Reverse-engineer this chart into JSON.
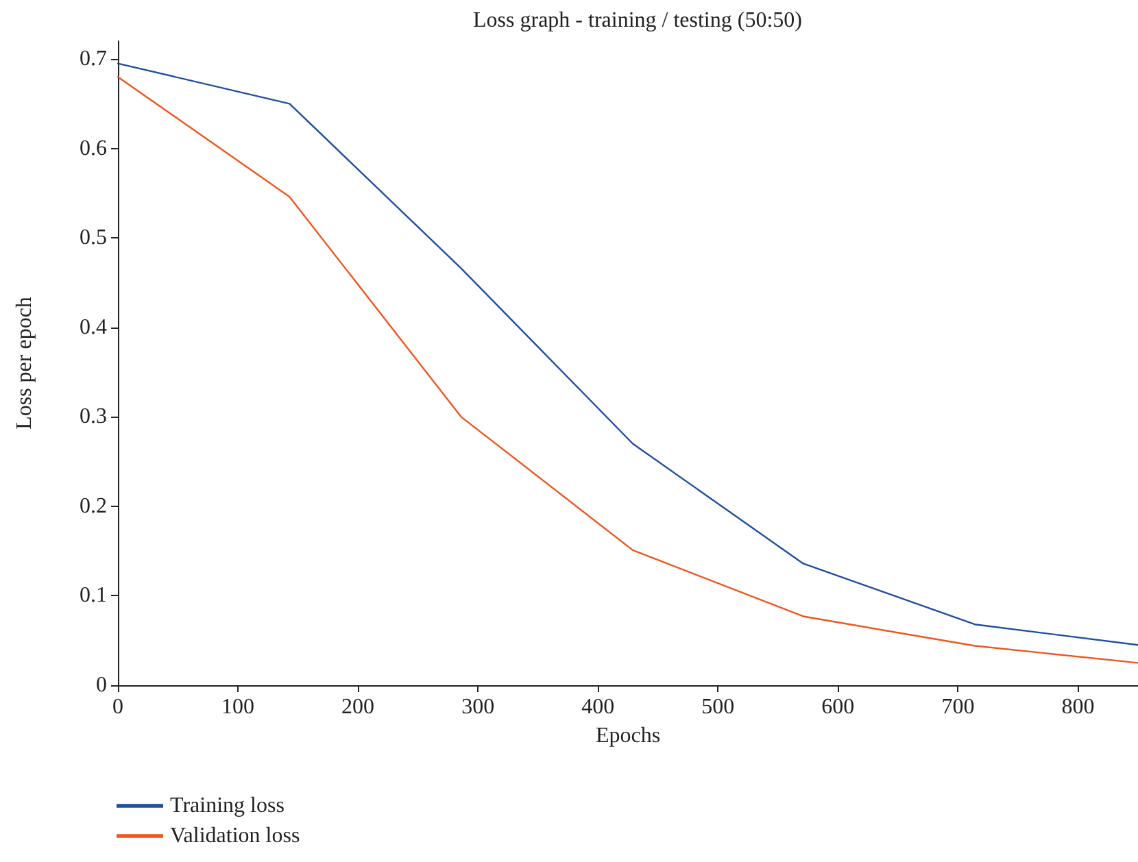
{
  "chart_data": {
    "type": "line",
    "title": "Loss graph - training / testing (50:50)",
    "xlabel": "Epochs",
    "ylabel": "Loss per epoch",
    "x": [
      0,
      143,
      286,
      429,
      571,
      714,
      850
    ],
    "series": [
      {
        "name": "Training loss",
        "color": "#1f4e9e",
        "values": [
          0.695,
          0.65,
          0.466,
          0.27,
          0.136,
          0.068,
          0.045
        ]
      },
      {
        "name": "Validation loss",
        "color": "#f0561d",
        "values": [
          0.68,
          0.546,
          0.3,
          0.151,
          0.077,
          0.044,
          0.025
        ]
      }
    ],
    "xlim": [
      0,
      850
    ],
    "xticks": [
      0,
      100,
      200,
      300,
      400,
      500,
      600,
      700,
      800
    ],
    "ylim": [
      0,
      0.72
    ],
    "yticks": [
      0,
      0.1,
      0.2,
      0.3,
      0.4,
      0.5,
      0.6,
      0.7
    ],
    "grid": false,
    "legend": "bottom left",
    "marker": "none",
    "line_style": "solid"
  }
}
